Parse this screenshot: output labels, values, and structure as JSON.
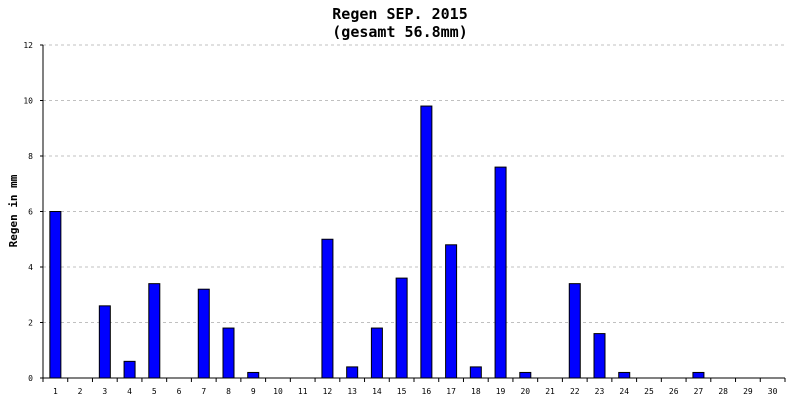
{
  "chart_data": {
    "type": "bar",
    "title": "Regen SEP. 2015",
    "subtitle": "(gesamt 56.8mm)",
    "xlabel": "",
    "ylabel": "Regen in mm",
    "ylim": [
      0,
      12
    ],
    "yticks": [
      0,
      2,
      4,
      6,
      8,
      10,
      12
    ],
    "grid": true,
    "categories": [
      "1",
      "2",
      "3",
      "4",
      "5",
      "6",
      "7",
      "8",
      "9",
      "10",
      "11",
      "12",
      "13",
      "14",
      "15",
      "16",
      "17",
      "18",
      "19",
      "20",
      "21",
      "22",
      "23",
      "24",
      "25",
      "26",
      "27",
      "28",
      "29",
      "30"
    ],
    "values": [
      6.0,
      0,
      2.6,
      0.6,
      3.4,
      0,
      3.2,
      1.8,
      0.2,
      0,
      0,
      5.0,
      0.4,
      1.8,
      3.6,
      9.8,
      4.8,
      0.4,
      7.6,
      0.2,
      0,
      3.4,
      1.6,
      0.2,
      0,
      0,
      0.2,
      0,
      0,
      0
    ],
    "colors": {
      "bar": "#0000ff",
      "bar_stroke": "#000000",
      "grid": "#c0c0c0",
      "axis": "#000000"
    }
  }
}
